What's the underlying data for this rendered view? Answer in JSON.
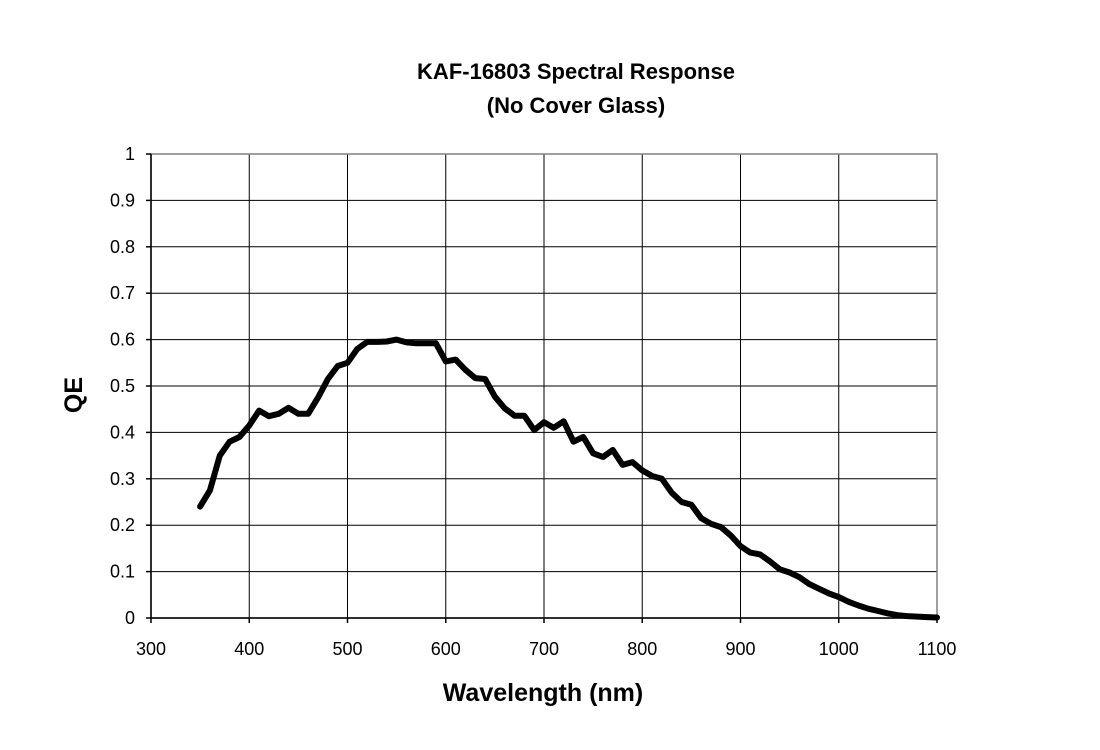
{
  "chart_data": {
    "type": "line",
    "title": "KAF-16803 Spectral Response",
    "subtitle": "(No Cover Glass)",
    "xlabel": "Wavelength (nm)",
    "ylabel": "QE",
    "xlim": [
      300,
      1100
    ],
    "ylim": [
      0,
      1
    ],
    "x_ticks": [
      300,
      400,
      500,
      600,
      700,
      800,
      900,
      1000,
      1100
    ],
    "y_ticks": [
      0,
      0.1,
      0.2,
      0.3,
      0.4,
      0.5,
      0.6,
      0.7,
      0.8,
      0.9,
      1
    ],
    "x_tick_labels": [
      "300",
      "400",
      "500",
      "600",
      "700",
      "800",
      "900",
      "1000",
      "1100"
    ],
    "y_tick_labels": [
      "0",
      "0.1",
      "0.2",
      "0.3",
      "0.4",
      "0.5",
      "0.6",
      "0.7",
      "0.8",
      "0.9",
      "1"
    ],
    "grid": true,
    "legend": "none",
    "line_color": "#000000",
    "x": [
      350,
      360,
      370,
      380,
      390,
      400,
      410,
      420,
      430,
      440,
      450,
      460,
      470,
      480,
      490,
      500,
      510,
      520,
      530,
      540,
      550,
      560,
      570,
      580,
      590,
      600,
      610,
      620,
      630,
      640,
      650,
      660,
      670,
      680,
      690,
      700,
      710,
      720,
      730,
      740,
      750,
      760,
      770,
      780,
      790,
      800,
      810,
      820,
      830,
      840,
      850,
      860,
      870,
      880,
      890,
      900,
      910,
      920,
      930,
      940,
      950,
      960,
      970,
      980,
      990,
      1000,
      1010,
      1020,
      1030,
      1040,
      1050,
      1060,
      1070,
      1080,
      1090,
      1100
    ],
    "series": [
      {
        "values": [
          0.24,
          0.275,
          0.35,
          0.38,
          0.39,
          0.415,
          0.447,
          0.435,
          0.44,
          0.453,
          0.44,
          0.44,
          0.475,
          0.515,
          0.543,
          0.55,
          0.58,
          0.595,
          0.595,
          0.596,
          0.6,
          0.594,
          0.592,
          0.592,
          0.592,
          0.553,
          0.557,
          0.535,
          0.517,
          0.515,
          0.477,
          0.452,
          0.436,
          0.436,
          0.405,
          0.422,
          0.41,
          0.424,
          0.38,
          0.39,
          0.355,
          0.347,
          0.362,
          0.33,
          0.336,
          0.318,
          0.306,
          0.3,
          0.27,
          0.25,
          0.244,
          0.215,
          0.203,
          0.196,
          0.178,
          0.155,
          0.141,
          0.137,
          0.122,
          0.105,
          0.098,
          0.088,
          0.073,
          0.063,
          0.053,
          0.045,
          0.035,
          0.027,
          0.02,
          0.015,
          0.01,
          0.006,
          0.004,
          0.003,
          0.002,
          0.001
        ]
      }
    ]
  }
}
